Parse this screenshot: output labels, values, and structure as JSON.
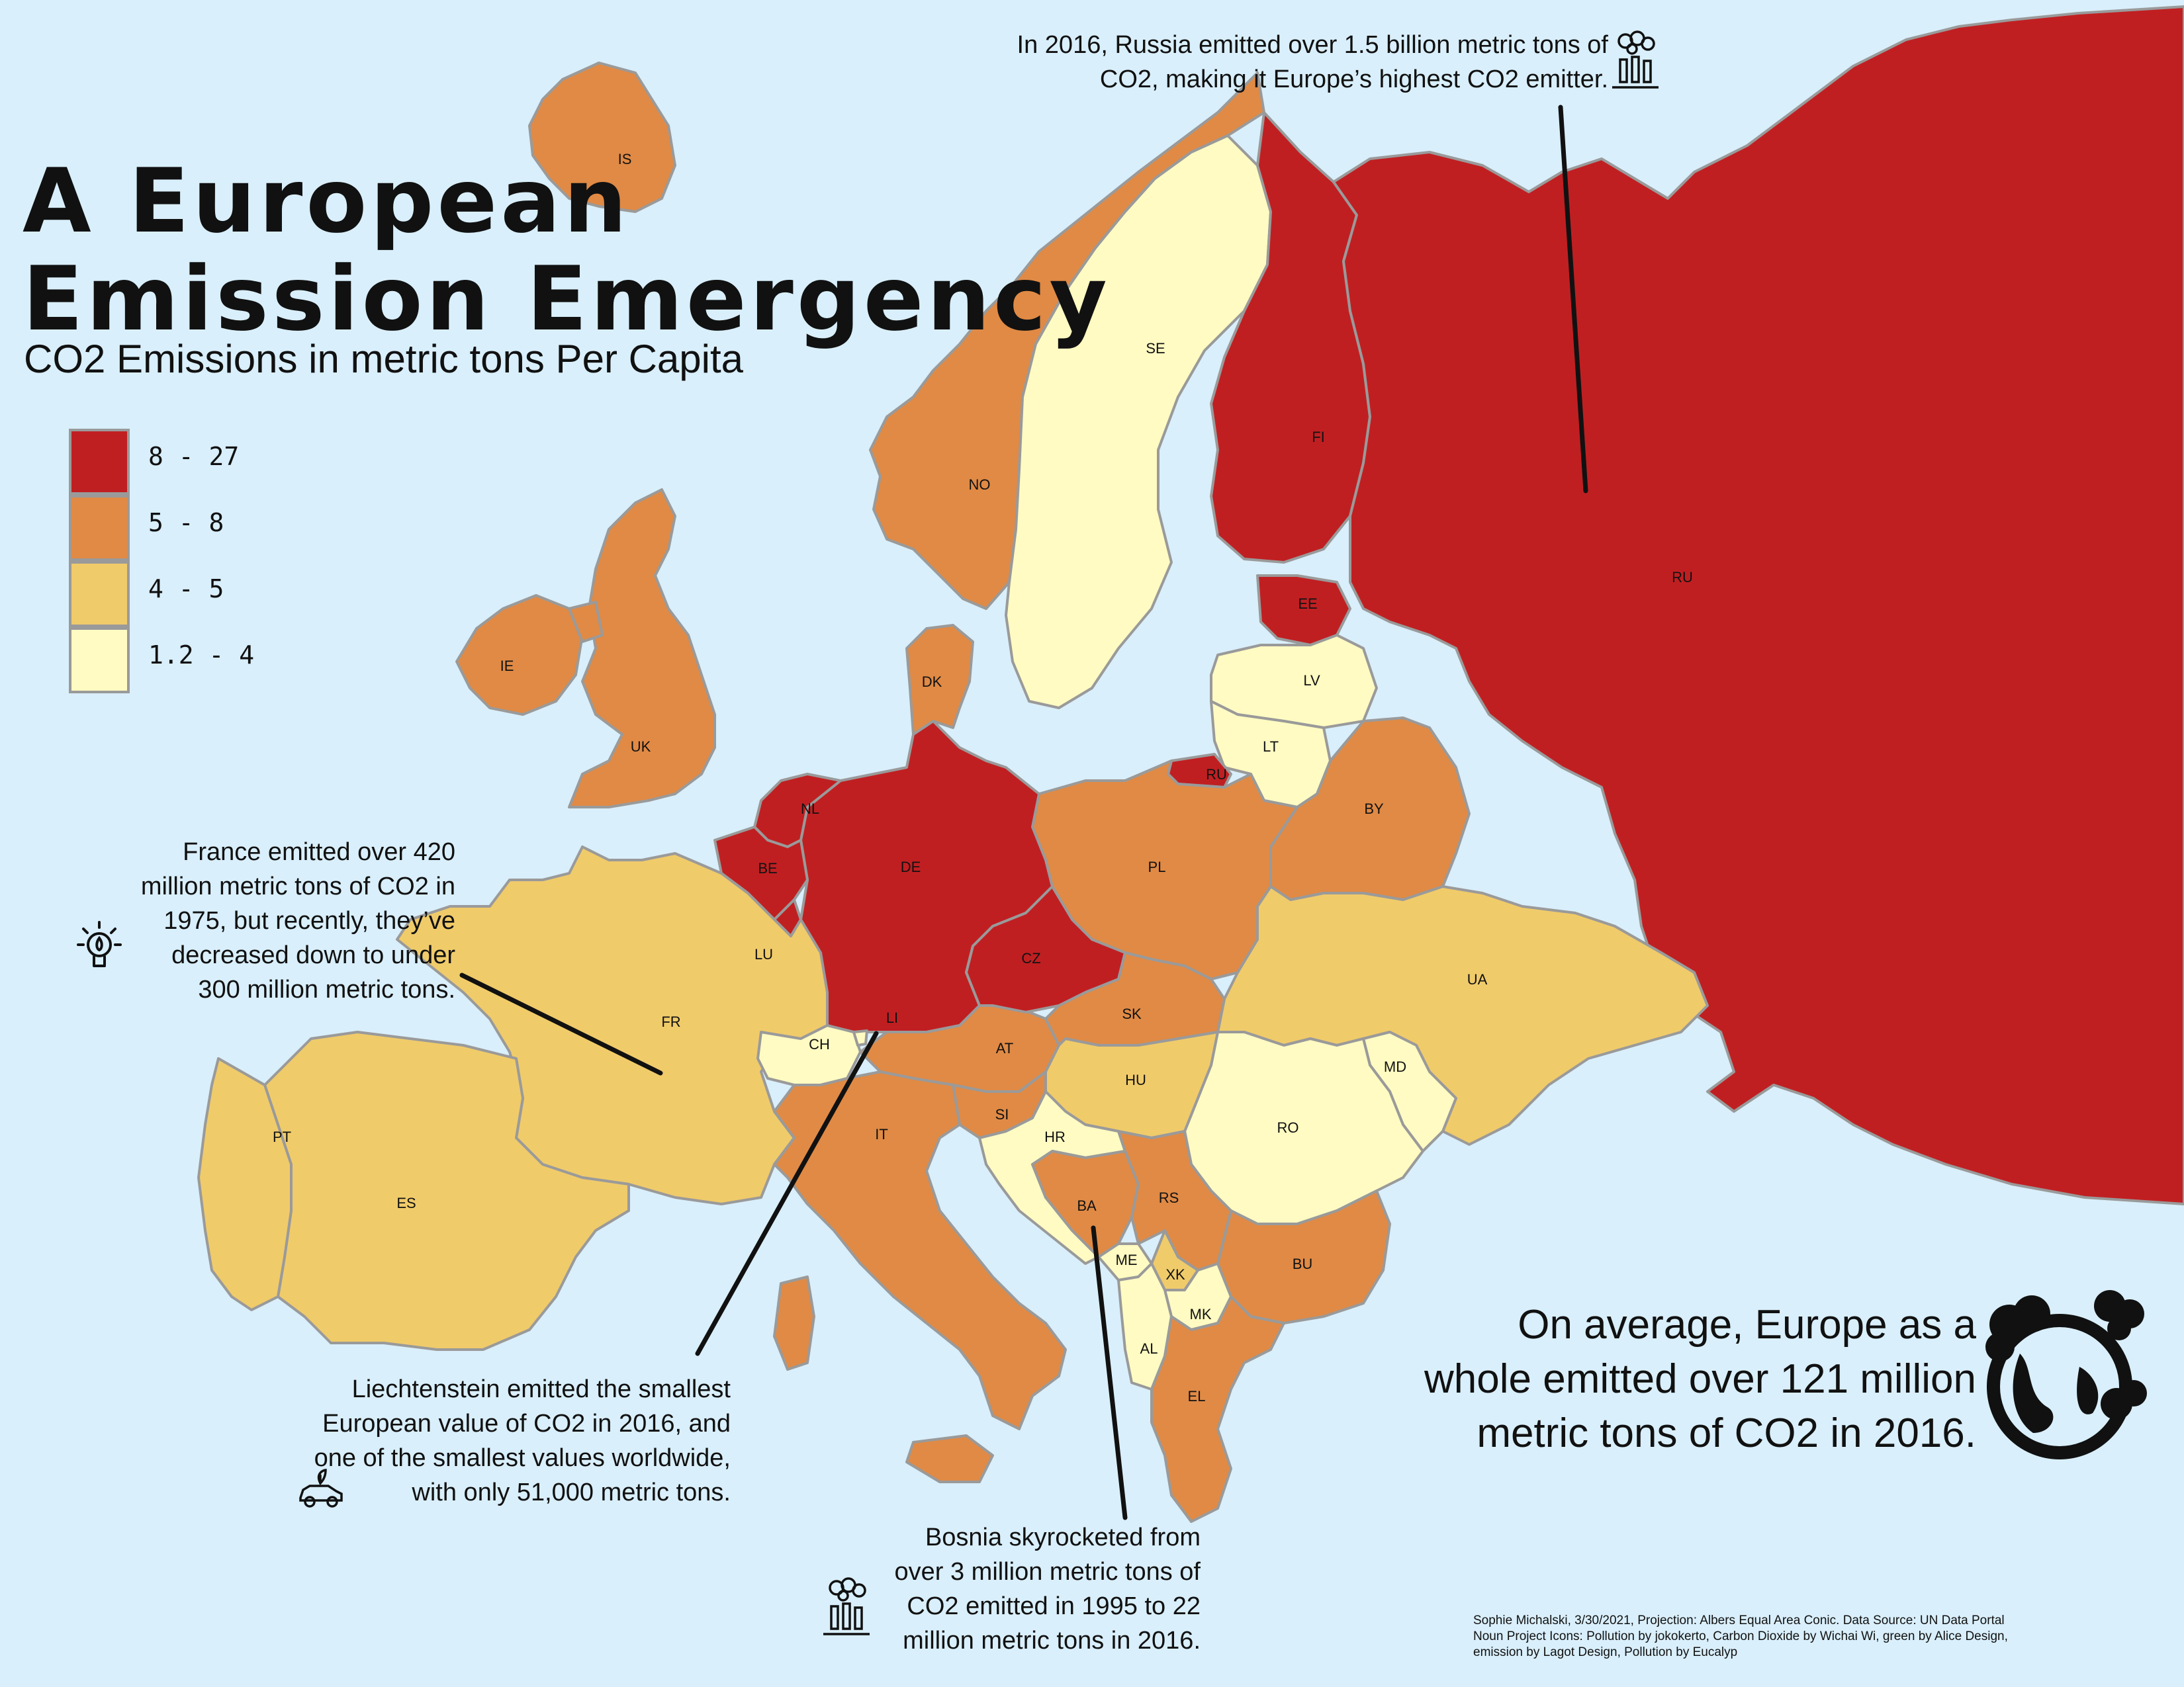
{
  "title_line1": "A European",
  "title_line2": "Emission Emergency",
  "subtitle": "CO2 Emissions in metric tons Per Capita",
  "legend": [
    {
      "label": "8 - 27",
      "color": "#c01f22"
    },
    {
      "label": "5 - 8",
      "color": "#e08a45"
    },
    {
      "label": "4 - 5",
      "color": "#f0cb6a"
    },
    {
      "label": "1.2 - 4",
      "color": "#fffbc2"
    }
  ],
  "colors": {
    "water": "#d9effb",
    "border": "#9a9a9a",
    "leader_line": "#111111"
  },
  "countries": [
    {
      "code": "IS",
      "class": 1
    },
    {
      "code": "NO",
      "class": 1
    },
    {
      "code": "SE",
      "class": 3
    },
    {
      "code": "FI",
      "class": 0
    },
    {
      "code": "RU",
      "class": 0
    },
    {
      "code": "EE",
      "class": 0
    },
    {
      "code": "LV",
      "class": 3
    },
    {
      "code": "LT",
      "class": 3
    },
    {
      "code": "RU",
      "class": 0
    },
    {
      "code": "BY",
      "class": 1
    },
    {
      "code": "UA",
      "class": 2
    },
    {
      "code": "MD",
      "class": 3
    },
    {
      "code": "RO",
      "class": 3
    },
    {
      "code": "BU",
      "class": 1
    },
    {
      "code": "PL",
      "class": 1
    },
    {
      "code": "DE",
      "class": 0
    },
    {
      "code": "DK",
      "class": 1
    },
    {
      "code": "NL",
      "class": 0
    },
    {
      "code": "BE",
      "class": 0
    },
    {
      "code": "LU",
      "class": 0
    },
    {
      "code": "FR",
      "class": 2
    },
    {
      "code": "CH",
      "class": 3
    },
    {
      "code": "LI",
      "class": 3
    },
    {
      "code": "AT",
      "class": 1
    },
    {
      "code": "CZ",
      "class": 0
    },
    {
      "code": "SK",
      "class": 1
    },
    {
      "code": "HU",
      "class": 2
    },
    {
      "code": "SI",
      "class": 1
    },
    {
      "code": "HR",
      "class": 3
    },
    {
      "code": "BA",
      "class": 1
    },
    {
      "code": "RS",
      "class": 1
    },
    {
      "code": "ME",
      "class": 3
    },
    {
      "code": "XK",
      "class": 2
    },
    {
      "code": "MK",
      "class": 3
    },
    {
      "code": "AL",
      "class": 3
    },
    {
      "code": "EL",
      "class": 1
    },
    {
      "code": "IT",
      "class": 1
    },
    {
      "code": "ES",
      "class": 2
    },
    {
      "code": "PT",
      "class": 2
    },
    {
      "code": "IE",
      "class": 1
    },
    {
      "code": "UK",
      "class": 1
    }
  ],
  "annotations": {
    "russia": [
      "In 2016, Russia emitted over 1.5 billion metric tons of",
      "CO2, making it Europe’s highest CO2 emitter."
    ],
    "france": [
      "France emitted over 420",
      "million metric tons of CO2 in",
      "1975, but recently, they’ve",
      "decreased down to under",
      "300 million metric tons."
    ],
    "liechtenstein": [
      "Liechtenstein emitted the smallest",
      "European value of CO2 in 2016, and",
      "one of the smallest values worldwide,",
      "with only 51,000 metric tons."
    ],
    "bosnia": [
      "Bosnia skyrocketed from",
      "over 3 million metric tons of",
      "CO2 emitted in 1995 to 22",
      "million metric tons in 2016."
    ],
    "europe": [
      "On average, Europe as a",
      "whole emitted over 121 million",
      "metric tons of CO2 in 2016."
    ]
  },
  "icons": {
    "russia": "factory-pollution-icon",
    "france": "lightbulb-icon",
    "liechtenstein": "green-car-icon",
    "bosnia": "factory-pollution-icon",
    "europe": "polluted-earth-icon"
  },
  "credits": [
    "Sophie Michalski, 3/30/2021, Projection: Albers Equal Area Conic. Data Source: UN Data Portal",
    "Noun Project Icons: Pollution by jokokerto, Carbon Dioxide by Wichai Wi, green by Alice Design,",
    "emission by Lagot Design, Pollution by Eucalyp"
  ]
}
